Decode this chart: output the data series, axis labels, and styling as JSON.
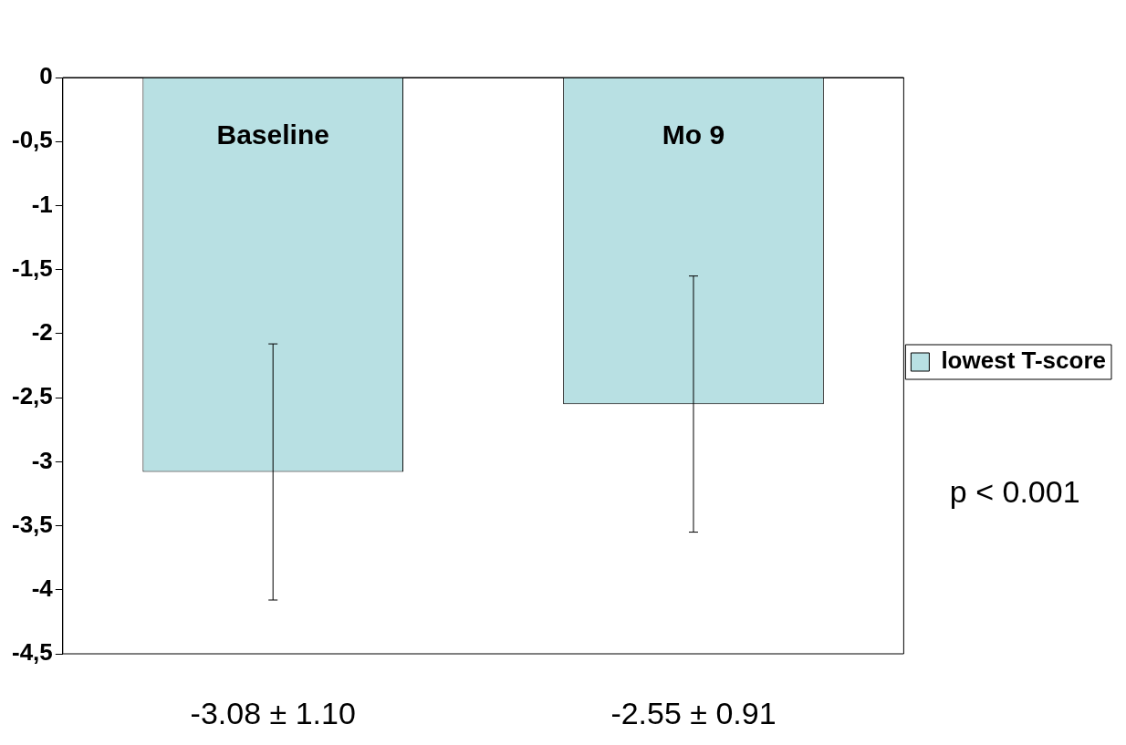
{
  "chart_data": {
    "type": "bar",
    "categories": [
      "Baseline",
      "Mo 9"
    ],
    "series": [
      {
        "name": "lowest T-score",
        "color": "#b8e0e3",
        "values": [
          -3.08,
          -2.55
        ],
        "errors": [
          1.0,
          1.0
        ],
        "value_labels": [
          "-3.08 ± 1.10",
          "-2.55 ± 0.91"
        ]
      }
    ],
    "ylim": [
      -4.5,
      0
    ],
    "yticks": [
      0,
      {
        "value": -0.5,
        "label": "-0,5"
      },
      -1,
      {
        "value": -1.5,
        "label": "-1,5"
      },
      -2,
      {
        "value": -2.5,
        "label": "-2,5"
      },
      -3,
      {
        "value": -3.5,
        "label": "-3,5"
      },
      -4,
      {
        "value": -4.5,
        "label": "-4,5"
      }
    ],
    "legend": "right",
    "annotations": [
      "p < 0.001"
    ]
  }
}
